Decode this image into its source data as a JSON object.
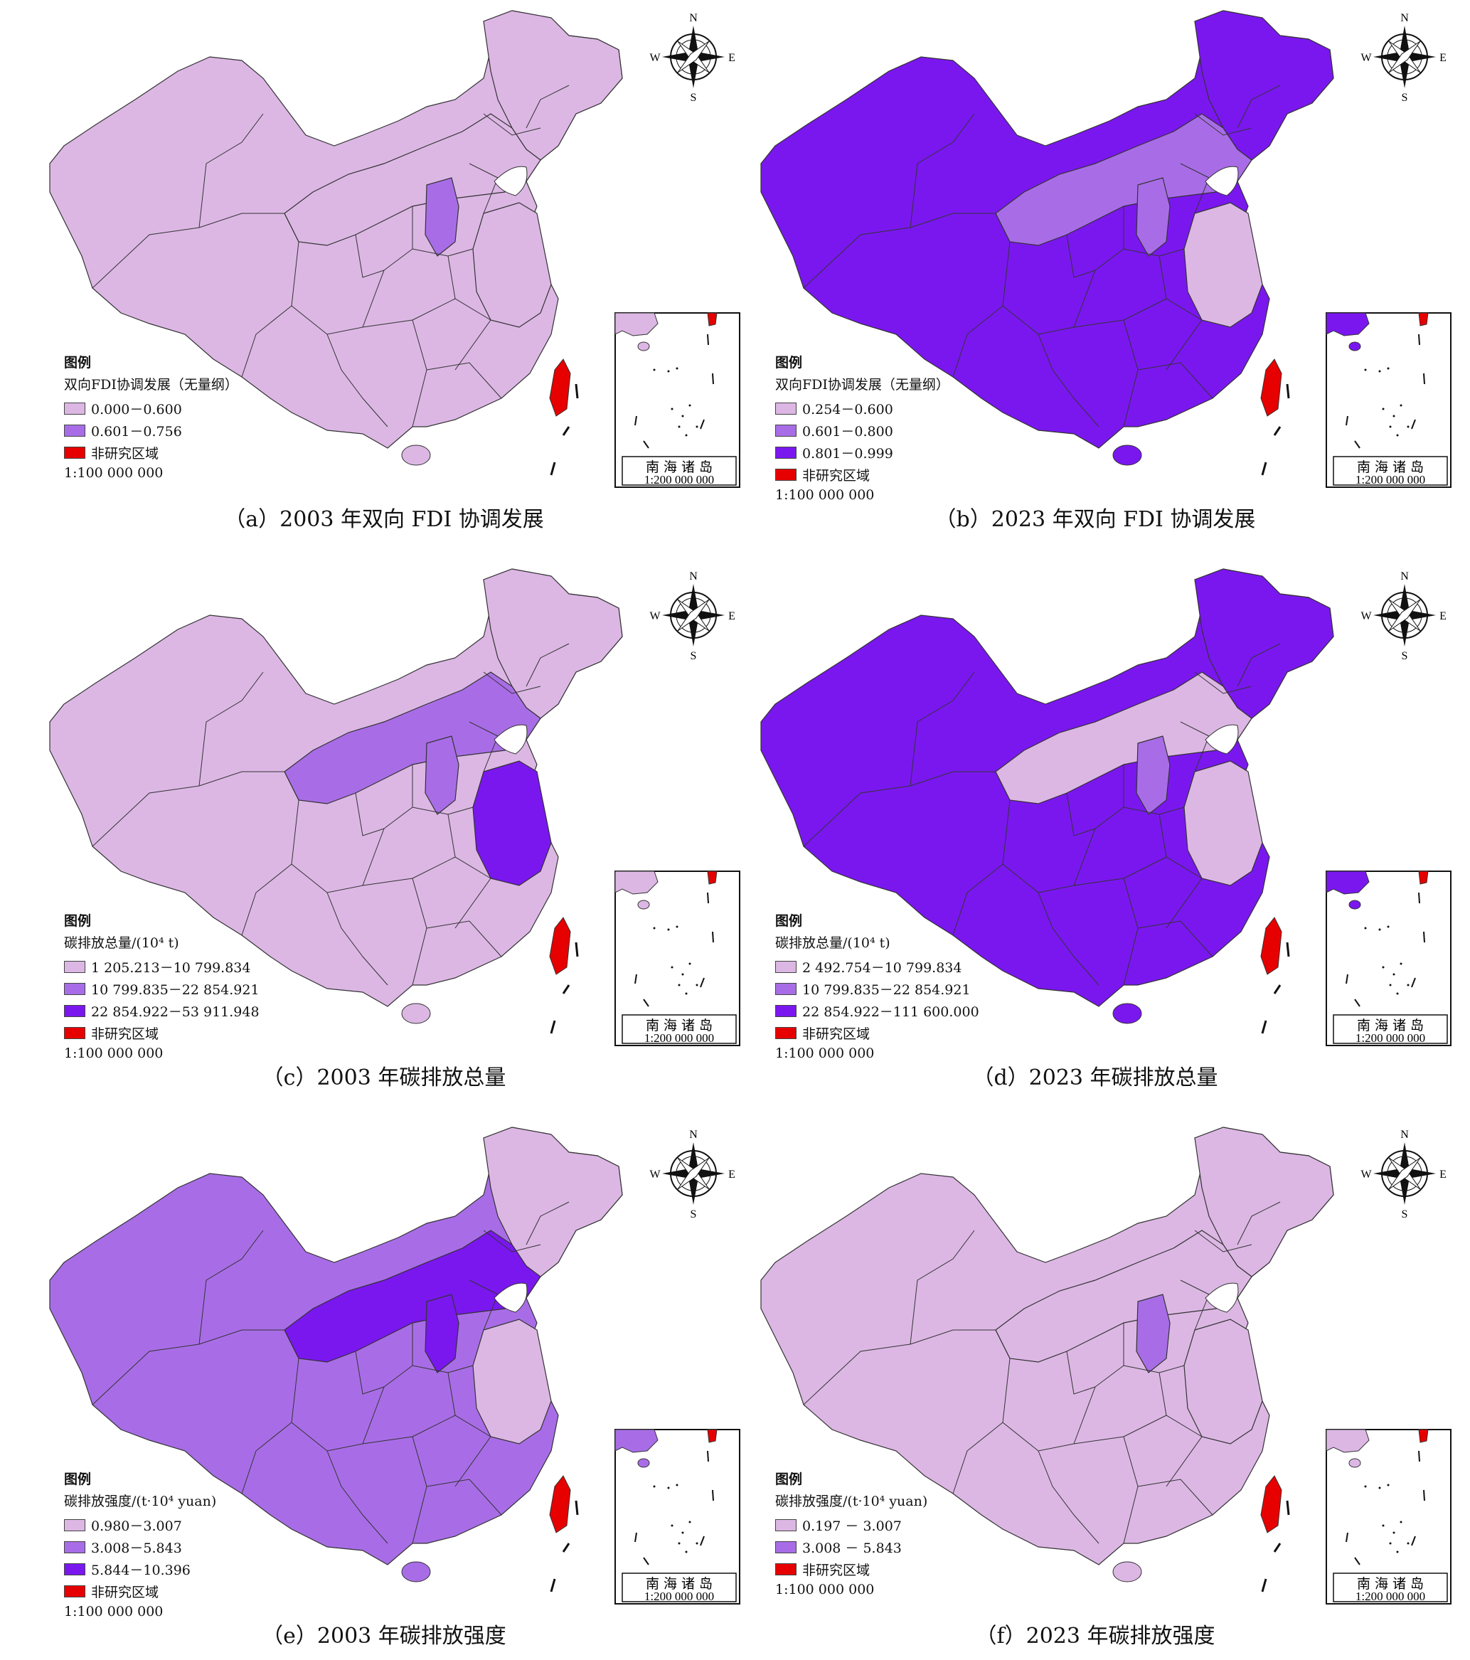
{
  "colors": {
    "light": "#dcb7e4",
    "mid": "#a86de6",
    "dark": "#7a17ef",
    "red": "#e60000",
    "border": "#333333"
  },
  "panels": [
    {
      "caption": "（a）2003 年双向 FDI 协调发展",
      "legend_title": "图例",
      "legend_subtitle": "双向FDI协调发展（无量纲）",
      "legend_items": [
        {
          "label": "0.000－0.600",
          "color": "#dcb7e4"
        },
        {
          "label": "0.601－0.756",
          "color": "#a86de6"
        },
        {
          "label": "非研究区域",
          "color": "#e60000"
        }
      ],
      "scale": "1:100 000 000",
      "inset": {
        "title": "南 海 诸 岛",
        "scale": "1:200 000 000"
      },
      "compass": {
        "n": "N",
        "s": "S",
        "e": "E",
        "w": "W"
      },
      "fills": {
        "base": "#dcb7e4",
        "hl1": "#a86de6",
        "hl2": "#dcb7e4",
        "hl3": "#dcb7e4",
        "hl4": "#dcb7e4"
      }
    },
    {
      "caption": "（b）2023 年双向 FDI 协调发展",
      "legend_title": "图例",
      "legend_subtitle": "双向FDI协调发展（无量纲）",
      "legend_items": [
        {
          "label": "0.254－0.600",
          "color": "#dcb7e4"
        },
        {
          "label": "0.601－0.800",
          "color": "#a86de6"
        },
        {
          "label": "0.801－0.999",
          "color": "#7a17ef"
        },
        {
          "label": "非研究区域",
          "color": "#e60000"
        }
      ],
      "scale": "1:100 000 000",
      "inset": {
        "title": "南 海 诸 岛",
        "scale": "1:200 000 000"
      },
      "compass": {
        "n": "N",
        "s": "S",
        "e": "E",
        "w": "W"
      },
      "fills": {
        "base": "#7a17ef",
        "hl1": "#a86de6",
        "hl2": "#dcb7e4",
        "hl3": "#a86de6",
        "hl4": "#7a17ef"
      }
    },
    {
      "caption": "（c）2003 年碳排放总量",
      "legend_title": "图例",
      "legend_subtitle": "碳排放总量/(10⁴ t)",
      "legend_items": [
        {
          "label": "1 205.213－10 799.834",
          "color": "#dcb7e4"
        },
        {
          "label": "10 799.835－22 854.921",
          "color": "#a86de6"
        },
        {
          "label": "22 854.922－53 911.948",
          "color": "#7a17ef"
        },
        {
          "label": "非研究区域",
          "color": "#e60000"
        }
      ],
      "scale": "1:100 000 000",
      "inset": {
        "title": "南 海 诸 岛",
        "scale": "1:200 000 000"
      },
      "compass": {
        "n": "N",
        "s": "S",
        "e": "E",
        "w": "W"
      },
      "fills": {
        "base": "#dcb7e4",
        "hl1": "#a86de6",
        "hl2": "#7a17ef",
        "hl3": "#a86de6",
        "hl4": "#dcb7e4"
      }
    },
    {
      "caption": "（d）2023 年碳排放总量",
      "legend_title": "图例",
      "legend_subtitle": "碳排放总量/(10⁴ t)",
      "legend_items": [
        {
          "label": "2 492.754－10 799.834",
          "color": "#dcb7e4"
        },
        {
          "label": "10 799.835－22 854.921",
          "color": "#a86de6"
        },
        {
          "label": "22 854.922－111 600.000",
          "color": "#7a17ef"
        },
        {
          "label": "非研究区域",
          "color": "#e60000"
        }
      ],
      "scale": "1:100 000 000",
      "inset": {
        "title": "南 海 诸 岛",
        "scale": "1:200 000 000"
      },
      "compass": {
        "n": "N",
        "s": "S",
        "e": "E",
        "w": "W"
      },
      "fills": {
        "base": "#7a17ef",
        "hl1": "#a86de6",
        "hl2": "#dcb7e4",
        "hl3": "#dcb7e4",
        "hl4": "#7a17ef"
      }
    },
    {
      "caption": "（e）2003 年碳排放强度",
      "legend_title": "图例",
      "legend_subtitle": "碳排放强度/(t·10⁴ yuan)",
      "legend_items": [
        {
          "label": "0.980－3.007",
          "color": "#dcb7e4"
        },
        {
          "label": "3.008－5.843",
          "color": "#a86de6"
        },
        {
          "label": "5.844－10.396",
          "color": "#7a17ef"
        },
        {
          "label": "非研究区域",
          "color": "#e60000"
        }
      ],
      "scale": "1:100 000 000",
      "inset": {
        "title": "南 海 诸 岛",
        "scale": "1:200 000 000"
      },
      "compass": {
        "n": "N",
        "s": "S",
        "e": "E",
        "w": "W"
      },
      "fills": {
        "base": "#a86de6",
        "hl1": "#7a17ef",
        "hl2": "#dcb7e4",
        "hl3": "#7a17ef",
        "hl4": "#dcb7e4"
      }
    },
    {
      "caption": "（f）2023 年碳排放强度",
      "legend_title": "图例",
      "legend_subtitle": "碳排放强度/(t·10⁴ yuan)",
      "legend_items": [
        {
          "label": "0.197 － 3.007",
          "color": "#dcb7e4"
        },
        {
          "label": "3.008 － 5.843",
          "color": "#a86de6"
        },
        {
          "label": "非研究区域",
          "color": "#e60000"
        }
      ],
      "scale": "1:100 000 000",
      "inset": {
        "title": "南 海 诸 岛",
        "scale": "1:200 000 000"
      },
      "compass": {
        "n": "N",
        "s": "S",
        "e": "E",
        "w": "W"
      },
      "fills": {
        "base": "#dcb7e4",
        "hl1": "#a86de6",
        "hl2": "#dcb7e4",
        "hl3": "#dcb7e4",
        "hl4": "#dcb7e4"
      }
    }
  ]
}
